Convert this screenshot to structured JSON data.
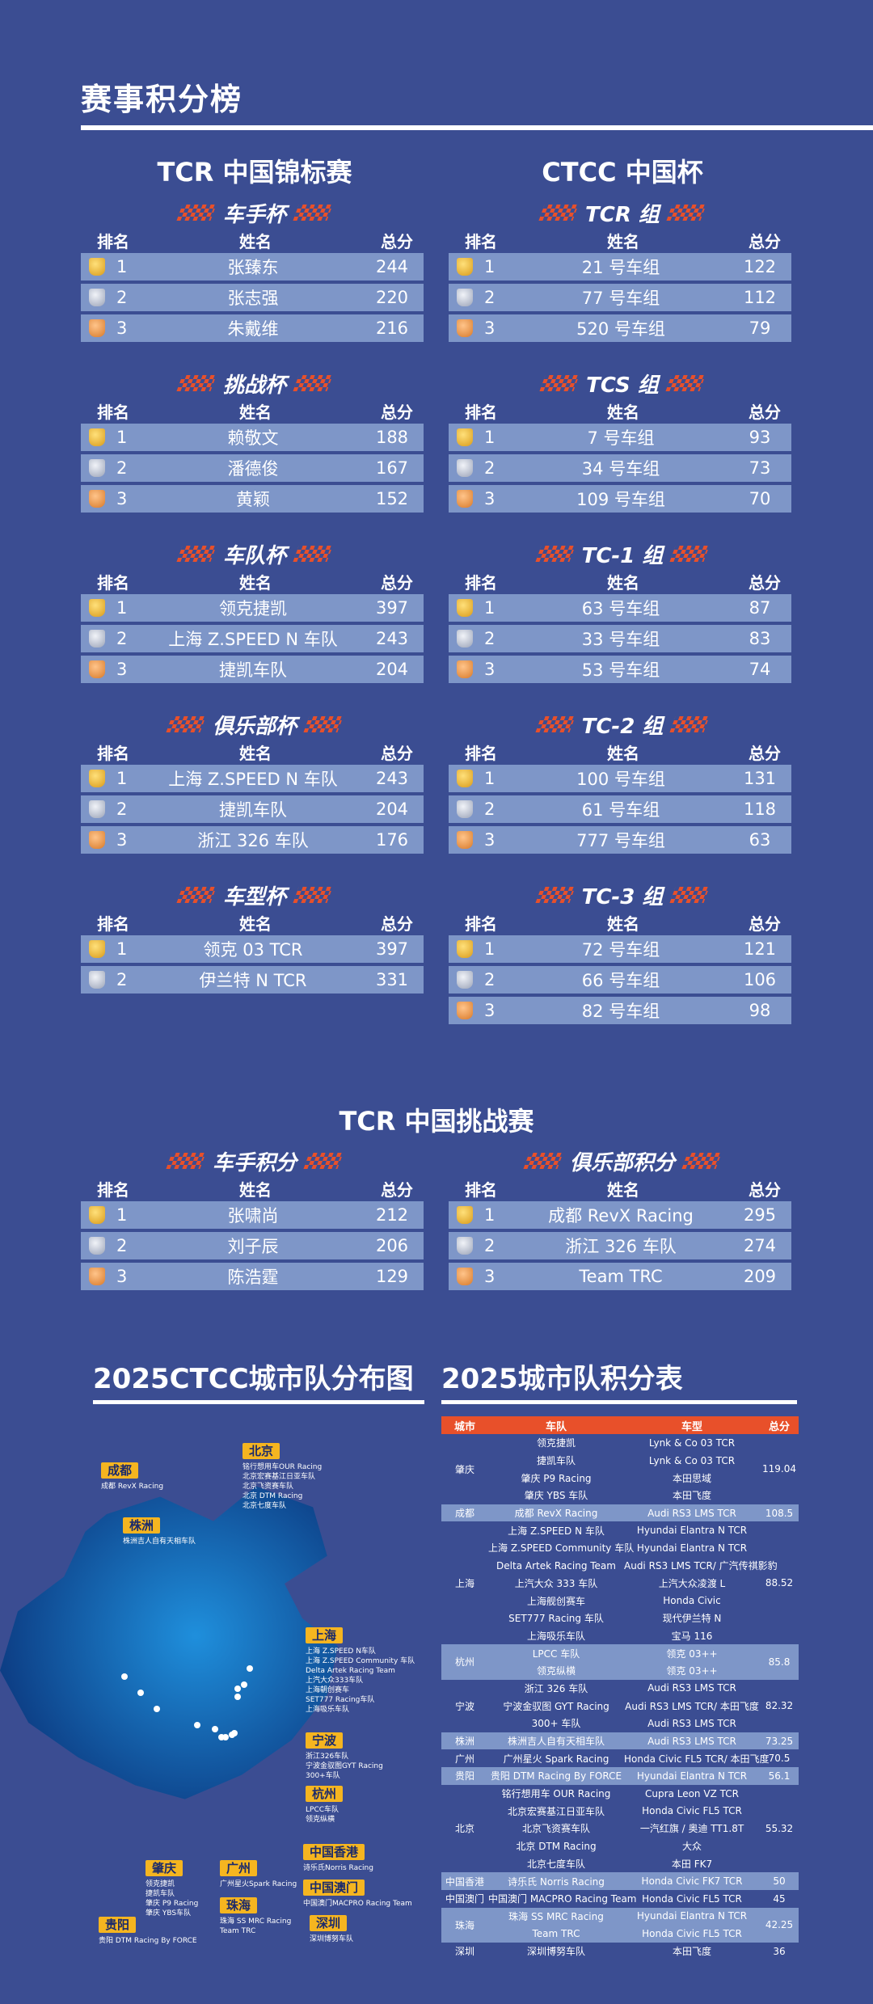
{
  "main_title": "赛事积分榜",
  "tcr_china": {
    "title": "TCR 中国锦标赛",
    "headers": {
      "rank": "排名",
      "name": "姓名",
      "score": "总分"
    },
    "cups": [
      {
        "name": "车手杯",
        "rows": [
          {
            "rank": "1",
            "name": "张臻东",
            "score": "244"
          },
          {
            "rank": "2",
            "name": "张志强",
            "score": "220"
          },
          {
            "rank": "3",
            "name": "朱戴维",
            "score": "216"
          }
        ]
      },
      {
        "name": "挑战杯",
        "rows": [
          {
            "rank": "1",
            "name": "赖敬文",
            "score": "188"
          },
          {
            "rank": "2",
            "name": "潘德俊",
            "score": "167"
          },
          {
            "rank": "3",
            "name": "黄颖",
            "score": "152"
          }
        ]
      },
      {
        "name": "车队杯",
        "rows": [
          {
            "rank": "1",
            "name": "领克捷凯",
            "score": "397"
          },
          {
            "rank": "2",
            "name": "上海 Z.SPEED N 车队",
            "score": "243"
          },
          {
            "rank": "3",
            "name": "捷凯车队",
            "score": "204"
          }
        ]
      },
      {
        "name": "俱乐部杯",
        "rows": [
          {
            "rank": "1",
            "name": "上海 Z.SPEED N 车队",
            "score": "243"
          },
          {
            "rank": "2",
            "name": "捷凯车队",
            "score": "204"
          },
          {
            "rank": "3",
            "name": "浙江 326 车队",
            "score": "176"
          }
        ]
      },
      {
        "name": "车型杯",
        "rows": [
          {
            "rank": "1",
            "name": "领克 03 TCR",
            "score": "397"
          },
          {
            "rank": "2",
            "name": "伊兰特 N TCR",
            "score": "331"
          }
        ]
      }
    ]
  },
  "ctcc": {
    "title": "CTCC 中国杯",
    "headers": {
      "rank": "排名",
      "name": "姓名",
      "score": "总分"
    },
    "cups": [
      {
        "name": "TCR 组",
        "rows": [
          {
            "rank": "1",
            "name": "21 号车组",
            "score": "122"
          },
          {
            "rank": "2",
            "name": "77 号车组",
            "score": "112"
          },
          {
            "rank": "3",
            "name": "520 号车组",
            "score": "79"
          }
        ]
      },
      {
        "name": "TCS 组",
        "rows": [
          {
            "rank": "1",
            "name": "7 号车组",
            "score": "93"
          },
          {
            "rank": "2",
            "name": "34 号车组",
            "score": "73"
          },
          {
            "rank": "3",
            "name": "109 号车组",
            "score": "70"
          }
        ]
      },
      {
        "name": "TC-1 组",
        "rows": [
          {
            "rank": "1",
            "name": "63 号车组",
            "score": "87"
          },
          {
            "rank": "2",
            "name": "33 号车组",
            "score": "83"
          },
          {
            "rank": "3",
            "name": "53 号车组",
            "score": "74"
          }
        ]
      },
      {
        "name": "TC-2 组",
        "rows": [
          {
            "rank": "1",
            "name": "100 号车组",
            "score": "131"
          },
          {
            "rank": "2",
            "name": "61 号车组",
            "score": "118"
          },
          {
            "rank": "3",
            "name": "777 号车组",
            "score": "63"
          }
        ]
      },
      {
        "name": "TC-3 组",
        "rows": [
          {
            "rank": "1",
            "name": "72 号车组",
            "score": "121"
          },
          {
            "rank": "2",
            "name": "66 号车组",
            "score": "106"
          },
          {
            "rank": "3",
            "name": "82 号车组",
            "score": "98"
          }
        ]
      }
    ]
  },
  "tcr_challenge": {
    "title": "TCR 中国挑战赛",
    "headers": {
      "rank": "排名",
      "name": "姓名",
      "score": "总分"
    },
    "cups": [
      {
        "name": "车手积分",
        "rows": [
          {
            "rank": "1",
            "name": "张啸尚",
            "score": "212"
          },
          {
            "rank": "2",
            "name": "刘子辰",
            "score": "206"
          },
          {
            "rank": "3",
            "name": "陈浩霆",
            "score": "129"
          }
        ]
      },
      {
        "name": "俱乐部积分",
        "rows": [
          {
            "rank": "1",
            "name": "成都 RevX Racing",
            "score": "295"
          },
          {
            "rank": "2",
            "name": "浙江 326 车队",
            "score": "274"
          },
          {
            "rank": "3",
            "name": "Team TRC",
            "score": "209"
          }
        ]
      }
    ]
  },
  "map": {
    "title": "2025CTCC城市队分布图",
    "cities": [
      {
        "name": "成都",
        "teams": [
          "成都 RevX Racing"
        ]
      },
      {
        "name": "株洲",
        "teams": [
          "株洲吉人自有天相车队"
        ]
      },
      {
        "name": "北京",
        "teams": [
          "铭行想用车OUR Racing",
          "北京宏赛基江日亚车队",
          "北京飞资赛车队",
          "北京 DTM Racing",
          "北京七度车队"
        ]
      },
      {
        "name": "上海",
        "teams": [
          "上海 Z.SPEED N车队",
          "上海 Z.SPEED Community 车队",
          "Delta Artek Racing Team",
          "上汽大众333车队",
          "上海朝创赛车",
          "SET777 Racing车队",
          "上海吸乐车队"
        ]
      },
      {
        "name": "宁波",
        "teams": [
          "浙江326车队",
          "宁波金驭图GYT Racing",
          "300+车队"
        ]
      },
      {
        "name": "杭州",
        "teams": [
          "LPCC车队",
          "领克纵横"
        ]
      },
      {
        "name": "中国香港",
        "teams": [
          "诗乐氏Norris Racing"
        ]
      },
      {
        "name": "中国澳门",
        "teams": [
          "中国澳门MACPRO Racing Team"
        ]
      },
      {
        "name": "肇庆",
        "teams": [
          "领克捷凯",
          "捷凯车队",
          "肇庆 P9 Racing",
          "肇庆 YBS车队"
        ]
      },
      {
        "name": "广州",
        "teams": [
          "广州星火Spark Racing"
        ]
      },
      {
        "name": "珠海",
        "teams": [
          "珠海 SS MRC Racing",
          "Team TRC"
        ]
      },
      {
        "name": "深圳",
        "teams": [
          "深圳博努车队"
        ]
      },
      {
        "name": "贵阳",
        "teams": [
          "贵阳 DTM Racing By FORCE"
        ]
      }
    ]
  },
  "city_table": {
    "title": "2025城市队积分表",
    "headers": {
      "city": "城市",
      "team": "车队",
      "car": "车型",
      "score": "总分"
    },
    "rows": [
      {
        "city": "肇庆",
        "score": "119.04",
        "hl": false,
        "teams": [
          {
            "team": "领克捷凯",
            "car": "Lynk & Co 03 TCR"
          },
          {
            "team": "捷凯车队",
            "car": "Lynk & Co 03 TCR"
          },
          {
            "team": "肇庆 P9 Racing",
            "car": "本田思域"
          },
          {
            "team": "肇庆 YBS 车队",
            "car": "本田飞度"
          }
        ]
      },
      {
        "city": "成都",
        "score": "108.5",
        "hl": true,
        "teams": [
          {
            "team": "成都 RevX Racing",
            "car": "Audi RS3 LMS TCR"
          }
        ]
      },
      {
        "city": "上海",
        "score": "88.52",
        "hl": false,
        "teams": [
          {
            "team": "上海 Z.SPEED N 车队",
            "car": "Hyundai Elantra N TCR"
          },
          {
            "team": "上海 Z.SPEED Community 车队",
            "car": "Hyundai Elantra N TCR"
          },
          {
            "team": "Delta Artek Racing Team",
            "car": "Audi RS3 LMS TCR/ 广汽传祺影豹"
          },
          {
            "team": "上汽大众 333 车队",
            "car": "上汽大众凌渡 L"
          },
          {
            "team": "上海舰创赛车",
            "car": "Honda Civic"
          },
          {
            "team": "SET777 Racing 车队",
            "car": "现代伊兰特 N"
          },
          {
            "team": "上海吸乐车队",
            "car": "宝马 116"
          }
        ]
      },
      {
        "city": "杭州",
        "score": "85.8",
        "hl": true,
        "teams": [
          {
            "team": "LPCC 车队",
            "car": "领克 03++"
          },
          {
            "team": "领克纵横",
            "car": "领克 03++"
          }
        ]
      },
      {
        "city": "宁波",
        "score": "82.32",
        "hl": false,
        "teams": [
          {
            "team": "浙江 326 车队",
            "car": "Audi RS3 LMS TCR"
          },
          {
            "team": "宁波金驭图 GYT Racing",
            "car": "Audi RS3 LMS TCR/ 本田飞度"
          },
          {
            "team": "300+ 车队",
            "car": "Audi RS3 LMS TCR"
          }
        ]
      },
      {
        "city": "株洲",
        "score": "73.25",
        "hl": true,
        "teams": [
          {
            "team": "株洲吉人自有天相车队",
            "car": "Audi RS3 LMS TCR"
          }
        ]
      },
      {
        "city": "广州",
        "score": "70.5",
        "hl": false,
        "teams": [
          {
            "team": "广州星火 Spark Racing",
            "car": "Honda Civic FL5 TCR/ 本田飞度"
          }
        ]
      },
      {
        "city": "贵阳",
        "score": "56.1",
        "hl": true,
        "teams": [
          {
            "team": "贵阳 DTM Racing By FORCE",
            "car": "Hyundai Elantra N TCR"
          }
        ]
      },
      {
        "city": "北京",
        "score": "55.32",
        "hl": false,
        "teams": [
          {
            "team": "铭行想用车 OUR Racing",
            "car": "Cupra Leon VZ TCR"
          },
          {
            "team": "北京宏赛基江日亚车队",
            "car": "Honda Civic FL5 TCR"
          },
          {
            "team": "北京飞资赛车队",
            "car": "一汽红旗 / 奥迪 TT1.8T"
          },
          {
            "team": "北京 DTM Racing",
            "car": "大众"
          },
          {
            "team": "北京七度车队",
            "car": "本田 FK7"
          }
        ]
      },
      {
        "city": "中国香港",
        "score": "50",
        "hl": true,
        "teams": [
          {
            "team": "诗乐氏 Norris Racing",
            "car": "Honda Civic FK7 TCR"
          }
        ]
      },
      {
        "city": "中国澳门",
        "score": "45",
        "hl": false,
        "teams": [
          {
            "team": "中国澳门 MACPRO Racing Team",
            "car": "Honda Civic FL5 TCR"
          }
        ]
      },
      {
        "city": "珠海",
        "score": "42.25",
        "hl": true,
        "teams": [
          {
            "team": "珠海 SS MRC Racing",
            "car": "Hyundai Elantra N TCR"
          },
          {
            "team": "Team TRC",
            "car": "Honda Civic FL5 TCR"
          }
        ]
      },
      {
        "city": "深圳",
        "score": "36",
        "hl": false,
        "teams": [
          {
            "team": "深圳博努车队",
            "car": "本田飞度"
          }
        ]
      }
    ]
  }
}
